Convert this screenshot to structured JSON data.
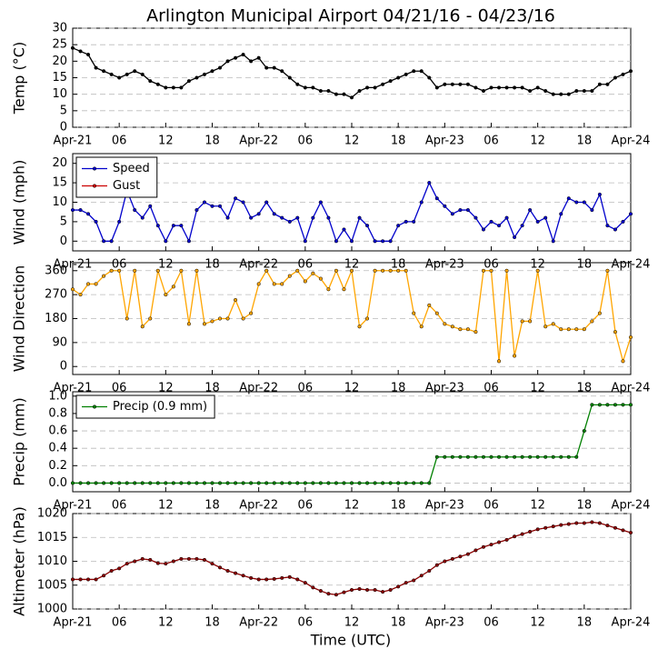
{
  "chart_data": [
    {
      "type": "line",
      "title": "Arlington Municipal Airport 04/21/16 - 04/23/16",
      "ylabel": "Temp (°C)",
      "x": [
        0,
        1,
        2,
        3,
        4,
        5,
        6,
        7,
        8,
        9,
        10,
        11,
        12,
        13,
        14,
        15,
        16,
        17,
        18,
        19,
        20,
        21,
        22,
        23,
        24,
        25,
        26,
        27,
        28,
        29,
        30,
        31,
        32,
        33,
        34,
        35,
        36,
        37,
        38,
        39,
        40,
        41,
        42,
        43,
        44,
        45,
        46,
        47,
        48,
        49,
        50,
        51,
        52,
        53,
        54,
        55,
        56,
        57,
        58,
        59,
        60,
        61,
        62,
        63,
        64,
        65,
        66,
        67,
        68,
        69,
        70,
        71,
        72
      ],
      "xlim": [
        0,
        72
      ],
      "xticks": [
        {
          "value": 0,
          "label": "Apr-21"
        },
        {
          "value": 6,
          "label": "06"
        },
        {
          "value": 12,
          "label": "12"
        },
        {
          "value": 18,
          "label": "18"
        },
        {
          "value": 24,
          "label": "Apr-22"
        },
        {
          "value": 30,
          "label": "06"
        },
        {
          "value": 36,
          "label": "12"
        },
        {
          "value": 42,
          "label": "18"
        },
        {
          "value": 48,
          "label": "Apr-23"
        },
        {
          "value": 54,
          "label": "06"
        },
        {
          "value": 60,
          "label": "12"
        },
        {
          "value": 66,
          "label": "18"
        },
        {
          "value": 72,
          "label": "Apr-24"
        }
      ],
      "ylim": [
        0,
        30
      ],
      "yticks": [
        0,
        5,
        10,
        15,
        20,
        25,
        30
      ],
      "grid": true,
      "series": [
        {
          "name": "Temp",
          "color": "#000000",
          "values": [
            24,
            23,
            22,
            18,
            17,
            16,
            15,
            16,
            17,
            16,
            14,
            13,
            12,
            12,
            12,
            14,
            15,
            16,
            17,
            18,
            20,
            21,
            22,
            20,
            21,
            18,
            18,
            17,
            15,
            13,
            12,
            12,
            11,
            11,
            10,
            10,
            9,
            11,
            12,
            12,
            13,
            14,
            15,
            16,
            17,
            17,
            15,
            12,
            13,
            13,
            13,
            13,
            12,
            11,
            12,
            12,
            12,
            12,
            12,
            11,
            12,
            11,
            10,
            10,
            10,
            11,
            11,
            11,
            13,
            13,
            15,
            16,
            17
          ]
        }
      ]
    },
    {
      "type": "line",
      "ylabel": "Wind (mph)",
      "legend": "upper left",
      "x": [
        0,
        1,
        2,
        3,
        4,
        5,
        6,
        7,
        8,
        9,
        10,
        11,
        12,
        13,
        14,
        15,
        16,
        17,
        18,
        19,
        20,
        21,
        22,
        23,
        24,
        25,
        26,
        27,
        28,
        29,
        30,
        31,
        32,
        33,
        34,
        35,
        36,
        37,
        38,
        39,
        40,
        41,
        42,
        43,
        44,
        45,
        46,
        47,
        48,
        49,
        50,
        51,
        52,
        53,
        54,
        55,
        56,
        57,
        58,
        59,
        60,
        61,
        62,
        63,
        64,
        65,
        66,
        67,
        68,
        69,
        70,
        71,
        72
      ],
      "xlim": [
        0,
        72
      ],
      "xticks": [
        {
          "value": 0,
          "label": "Apr-21"
        },
        {
          "value": 6,
          "label": "06"
        },
        {
          "value": 12,
          "label": "12"
        },
        {
          "value": 18,
          "label": "18"
        },
        {
          "value": 24,
          "label": "Apr-22"
        },
        {
          "value": 30,
          "label": "06"
        },
        {
          "value": 36,
          "label": "12"
        },
        {
          "value": 42,
          "label": "18"
        },
        {
          "value": 48,
          "label": "Apr-23"
        },
        {
          "value": 54,
          "label": "06"
        },
        {
          "value": 60,
          "label": "12"
        },
        {
          "value": 66,
          "label": "18"
        },
        {
          "value": 72,
          "label": "Apr-24"
        }
      ],
      "ylim": [
        -2.5,
        22.5
      ],
      "yticks": [
        0,
        5,
        10,
        15,
        20
      ],
      "grid": true,
      "series": [
        {
          "name": "Speed",
          "color": "#0000cc",
          "values": [
            8,
            8,
            7,
            5,
            0,
            0,
            5,
            13,
            8,
            6,
            9,
            4,
            0,
            4,
            4,
            0,
            8,
            10,
            9,
            9,
            6,
            11,
            10,
            6,
            7,
            10,
            7,
            6,
            5,
            6,
            0,
            6,
            10,
            6,
            0,
            3,
            0,
            6,
            4,
            0,
            0,
            0,
            4,
            5,
            5,
            10,
            15,
            11,
            9,
            7,
            8,
            8,
            6,
            3,
            5,
            4,
            6,
            1,
            4,
            8,
            5,
            6,
            0,
            7,
            11,
            10,
            10,
            8,
            12,
            4,
            3,
            5,
            7
          ]
        },
        {
          "name": "Gust",
          "color": "#cc0000",
          "values": [
            null,
            null,
            null,
            null,
            null,
            null,
            null,
            null,
            null,
            null,
            null,
            null,
            null,
            null,
            null,
            null,
            null,
            null,
            null,
            null,
            null,
            null,
            null,
            null,
            null,
            null,
            null,
            null,
            null,
            null,
            null,
            null,
            null,
            null,
            null,
            null,
            null,
            null,
            null,
            null,
            null,
            null,
            null,
            null,
            null,
            null,
            null,
            null,
            null,
            null,
            null,
            null,
            null,
            null,
            null,
            null,
            null,
            null,
            null,
            null,
            null,
            null,
            null,
            null,
            null,
            null,
            null,
            null,
            null,
            null,
            null,
            null,
            null
          ]
        }
      ]
    },
    {
      "type": "line",
      "ylabel": "Wind Direction",
      "x": [
        0,
        1,
        2,
        3,
        4,
        5,
        6,
        7,
        8,
        9,
        10,
        11,
        12,
        13,
        14,
        15,
        16,
        17,
        18,
        19,
        20,
        21,
        22,
        23,
        24,
        25,
        26,
        27,
        28,
        29,
        30,
        31,
        32,
        33,
        34,
        35,
        36,
        37,
        38,
        39,
        40,
        41,
        42,
        43,
        44,
        45,
        46,
        47,
        48,
        49,
        50,
        51,
        52,
        53,
        54,
        55,
        56,
        57,
        58,
        59,
        60,
        61,
        62,
        63,
        64,
        65,
        66,
        67,
        68,
        69,
        70,
        71,
        72
      ],
      "xlim": [
        0,
        72
      ],
      "xticks": [
        {
          "value": 0,
          "label": "Apr-21"
        },
        {
          "value": 6,
          "label": "06"
        },
        {
          "value": 12,
          "label": "12"
        },
        {
          "value": 18,
          "label": "18"
        },
        {
          "value": 24,
          "label": "Apr-22"
        },
        {
          "value": 30,
          "label": "06"
        },
        {
          "value": 36,
          "label": "12"
        },
        {
          "value": 42,
          "label": "18"
        },
        {
          "value": 48,
          "label": "Apr-23"
        },
        {
          "value": 54,
          "label": "06"
        },
        {
          "value": 60,
          "label": "12"
        },
        {
          "value": 66,
          "label": "18"
        },
        {
          "value": 72,
          "label": "Apr-24"
        }
      ],
      "ylim": [
        -30,
        390
      ],
      "yticks": [
        0,
        90,
        180,
        270,
        360
      ],
      "grid": true,
      "series": [
        {
          "name": "Direction",
          "color": "#ffa500",
          "values": [
            290,
            270,
            310,
            310,
            340,
            360,
            360,
            180,
            360,
            150,
            180,
            360,
            270,
            300,
            360,
            160,
            360,
            160,
            170,
            180,
            180,
            250,
            180,
            200,
            310,
            360,
            310,
            310,
            340,
            360,
            320,
            350,
            330,
            290,
            360,
            290,
            360,
            150,
            180,
            360,
            360,
            360,
            360,
            360,
            200,
            150,
            230,
            200,
            160,
            150,
            140,
            140,
            130,
            360,
            360,
            20,
            360,
            40,
            170,
            170,
            360,
            150,
            160,
            140,
            140,
            140,
            140,
            170,
            200,
            360,
            130,
            20,
            110
          ]
        }
      ]
    },
    {
      "type": "line",
      "ylabel": "Precip (mm)",
      "legend": "upper left",
      "x": [
        0,
        1,
        2,
        3,
        4,
        5,
        6,
        7,
        8,
        9,
        10,
        11,
        12,
        13,
        14,
        15,
        16,
        17,
        18,
        19,
        20,
        21,
        22,
        23,
        24,
        25,
        26,
        27,
        28,
        29,
        30,
        31,
        32,
        33,
        34,
        35,
        36,
        37,
        38,
        39,
        40,
        41,
        42,
        43,
        44,
        45,
        46,
        47,
        48,
        49,
        50,
        51,
        52,
        53,
        54,
        55,
        56,
        57,
        58,
        59,
        60,
        61,
        62,
        63,
        64,
        65,
        66,
        67,
        68,
        69,
        70,
        71,
        72
      ],
      "xlim": [
        0,
        72
      ],
      "xticks": [
        {
          "value": 0,
          "label": "Apr-21"
        },
        {
          "value": 6,
          "label": "06"
        },
        {
          "value": 12,
          "label": "12"
        },
        {
          "value": 18,
          "label": "18"
        },
        {
          "value": 24,
          "label": "Apr-22"
        },
        {
          "value": 30,
          "label": "06"
        },
        {
          "value": 36,
          "label": "12"
        },
        {
          "value": 42,
          "label": "18"
        },
        {
          "value": 48,
          "label": "Apr-23"
        },
        {
          "value": 54,
          "label": "06"
        },
        {
          "value": 60,
          "label": "12"
        },
        {
          "value": 66,
          "label": "18"
        },
        {
          "value": 72,
          "label": "Apr-24"
        }
      ],
      "ylim": [
        -0.1,
        1.05
      ],
      "yticks": [
        {
          "value": 0,
          "label": "0.0"
        },
        {
          "value": 0.2,
          "label": "0.2"
        },
        {
          "value": 0.4,
          "label": "0.4"
        },
        {
          "value": 0.6,
          "label": "0.6"
        },
        {
          "value": 0.8,
          "label": "0.8"
        },
        {
          "value": 1,
          "label": "1.0"
        }
      ],
      "grid": true,
      "series": [
        {
          "name": "Precip (0.9 mm)",
          "color": "#008000",
          "values": [
            0,
            0,
            0,
            0,
            0,
            0,
            0,
            0,
            0,
            0,
            0,
            0,
            0,
            0,
            0,
            0,
            0,
            0,
            0,
            0,
            0,
            0,
            0,
            0,
            0,
            0,
            0,
            0,
            0,
            0,
            0,
            0,
            0,
            0,
            0,
            0,
            0,
            0,
            0,
            0,
            0,
            0,
            0,
            0,
            0,
            0,
            0,
            0.3,
            0.3,
            0.3,
            0.3,
            0.3,
            0.3,
            0.3,
            0.3,
            0.3,
            0.3,
            0.3,
            0.3,
            0.3,
            0.3,
            0.3,
            0.3,
            0.3,
            0.3,
            0.3,
            0.6,
            0.9,
            0.9,
            0.9,
            0.9,
            0.9,
            0.9
          ]
        }
      ]
    },
    {
      "type": "line",
      "ylabel": "Altimeter (hPa)",
      "xlabel": "Time (UTC)",
      "x": [
        0,
        1,
        2,
        3,
        4,
        5,
        6,
        7,
        8,
        9,
        10,
        11,
        12,
        13,
        14,
        15,
        16,
        17,
        18,
        19,
        20,
        21,
        22,
        23,
        24,
        25,
        26,
        27,
        28,
        29,
        30,
        31,
        32,
        33,
        34,
        35,
        36,
        37,
        38,
        39,
        40,
        41,
        42,
        43,
        44,
        45,
        46,
        47,
        48,
        49,
        50,
        51,
        52,
        53,
        54,
        55,
        56,
        57,
        58,
        59,
        60,
        61,
        62,
        63,
        64,
        65,
        66,
        67,
        68,
        69,
        70,
        71,
        72
      ],
      "xlim": [
        0,
        72
      ],
      "xticks": [
        {
          "value": 0,
          "label": "Apr-21"
        },
        {
          "value": 6,
          "label": "06"
        },
        {
          "value": 12,
          "label": "12"
        },
        {
          "value": 18,
          "label": "18"
        },
        {
          "value": 24,
          "label": "Apr-22"
        },
        {
          "value": 30,
          "label": "06"
        },
        {
          "value": 36,
          "label": "12"
        },
        {
          "value": 42,
          "label": "18"
        },
        {
          "value": 48,
          "label": "Apr-23"
        },
        {
          "value": 54,
          "label": "06"
        },
        {
          "value": 60,
          "label": "12"
        },
        {
          "value": 66,
          "label": "18"
        },
        {
          "value": 72,
          "label": "Apr-24"
        }
      ],
      "ylim": [
        1000,
        1020
      ],
      "yticks": [
        1000,
        1005,
        1010,
        1015,
        1020
      ],
      "grid": true,
      "series": [
        {
          "name": "Altimeter",
          "color": "#8b0000",
          "values": [
            1006.2,
            1006.2,
            1006.2,
            1006.2,
            1007,
            1008,
            1008.5,
            1009.5,
            1010,
            1010.5,
            1010.3,
            1009.6,
            1009.5,
            1010,
            1010.5,
            1010.5,
            1010.5,
            1010.3,
            1009.5,
            1008.7,
            1008,
            1007.5,
            1007,
            1006.5,
            1006.2,
            1006.2,
            1006.3,
            1006.5,
            1006.7,
            1006.2,
            1005.5,
            1004.5,
            1003.8,
            1003.2,
            1003,
            1003.5,
            1004,
            1004.2,
            1004,
            1004,
            1003.6,
            1004,
            1004.7,
            1005.5,
            1006,
            1007,
            1008,
            1009.2,
            1010,
            1010.5,
            1011,
            1011.5,
            1012.3,
            1013,
            1013.5,
            1014,
            1014.5,
            1015.2,
            1015.7,
            1016.2,
            1016.7,
            1017,
            1017.3,
            1017.6,
            1017.8,
            1018,
            1018,
            1018.2,
            1018,
            1017.5,
            1017,
            1016.5,
            1016
          ]
        }
      ]
    }
  ]
}
